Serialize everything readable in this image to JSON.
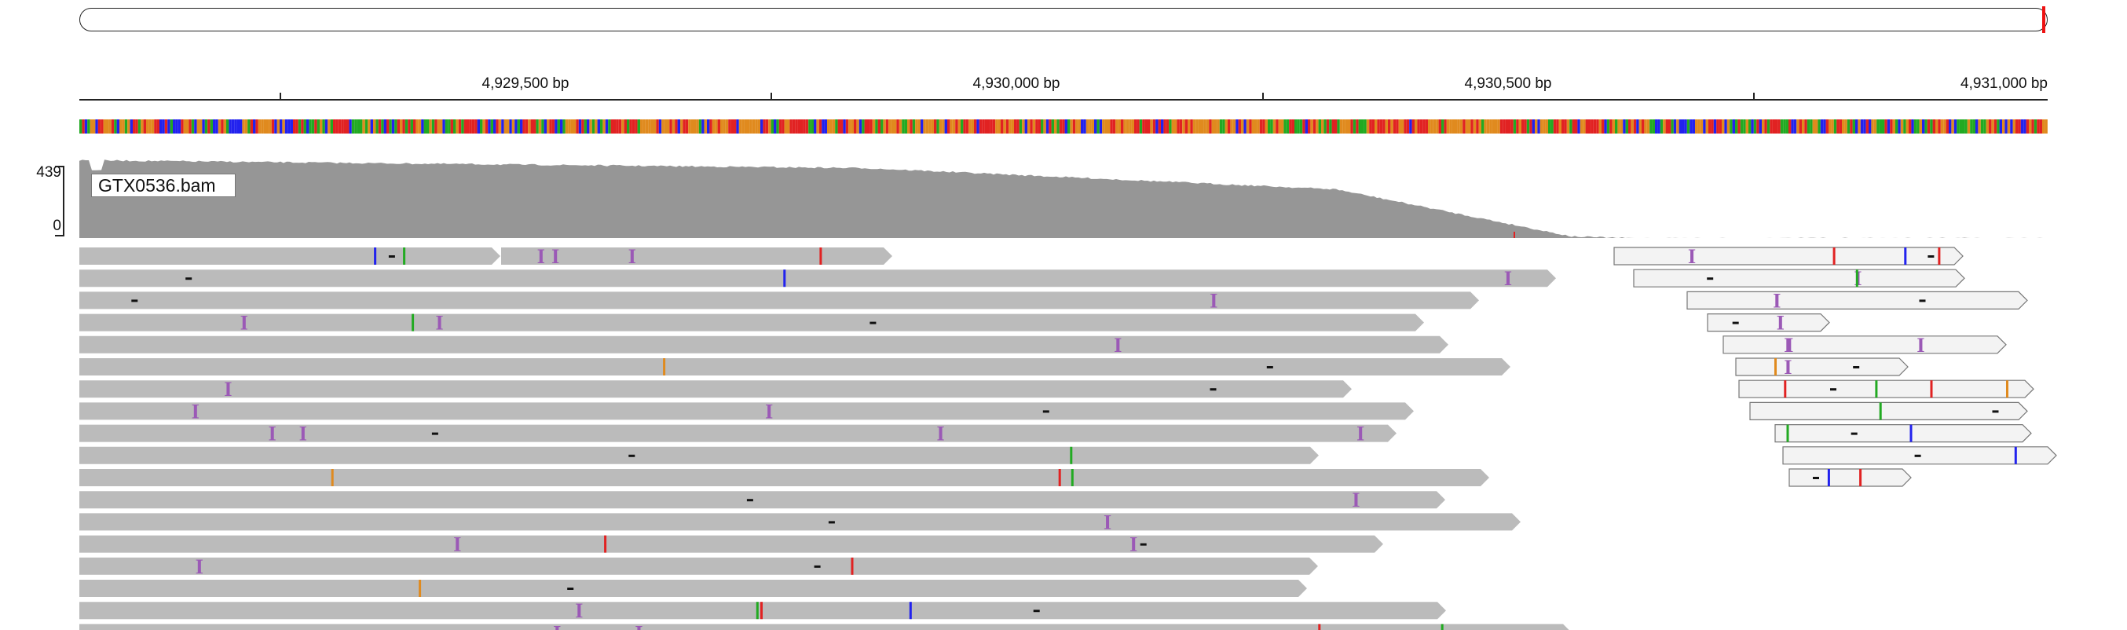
{
  "locus": {
    "ruler_ticks": [
      {
        "bp": 4929296
      },
      {
        "bp": 4929500,
        "label": "4,929,500 bp"
      },
      {
        "bp": 4929750
      },
      {
        "bp": 4930000,
        "label": "4,930,000 bp"
      },
      {
        "bp": 4930250
      },
      {
        "bp": 4930500,
        "label": "4,930,500 bp"
      },
      {
        "bp": 4930750
      },
      {
        "bp": 4931000,
        "label": "4,931,000 bp"
      }
    ]
  },
  "coverage": {
    "track_name": "GTX0536.bam",
    "axis_max": "439",
    "axis_min": "0",
    "color": "#969696"
  },
  "colors": {
    "read_fill": "#bbbbbb",
    "read_fill_light": "#f3f3f3",
    "insertion": "#9b59b6",
    "base_A": "#22aa22",
    "base_C": "#2222ee",
    "base_G": "#e08a1e",
    "base_T": "#e12222"
  },
  "alignment": {
    "track_name": "GTX0536.bam"
  }
}
